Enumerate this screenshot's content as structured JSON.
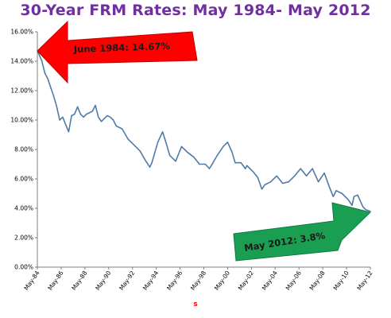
{
  "title": "30-Year FRM Rates: May 1984- May 2012",
  "colors": {
    "title": "#7030a0",
    "series": "#4f7ba7",
    "axis": "#7f7f7f",
    "arrow_down_red": "#ff0000",
    "arrow_up_green": "#1a9e52",
    "xlabel": "#ff0000"
  },
  "chart_data": {
    "type": "line",
    "title": "30-Year FRM Rates: May 1984- May 2012",
    "xlabel": "s",
    "ylabel": "",
    "ylim": [
      0,
      16
    ],
    "y_ticks": [
      "0.00%",
      "2.00%",
      "4.00%",
      "6.00%",
      "8.00%",
      "10.00%",
      "12.00%",
      "14.00%",
      "16.00%"
    ],
    "x_ticks": [
      "May-84",
      "May-86",
      "May-88",
      "May-90",
      "May-92",
      "May-94",
      "May-96",
      "May-98",
      "May-00",
      "May-02",
      "May-04",
      "May-06",
      "May-08",
      "May-10",
      "May-12"
    ],
    "grid": false,
    "series": [
      {
        "x": [
          1984.37,
          1984.5,
          1984.75,
          1985.0,
          1985.25,
          1985.5,
          1985.75,
          1986.0,
          1986.25,
          1986.5,
          1986.75,
          1987.0,
          1987.25,
          1987.5,
          1987.75,
          1988.0,
          1988.25,
          1988.5,
          1988.75,
          1989.0,
          1989.25,
          1989.5,
          1989.75,
          1990.0,
          1990.25,
          1990.5,
          1990.75,
          1991.0,
          1991.5,
          1992.0,
          1992.5,
          1993.0,
          1993.5,
          1993.83,
          1994.0,
          1994.5,
          1994.9,
          1995.25,
          1995.5,
          1996.0,
          1996.5,
          1997.0,
          1997.5,
          1998.0,
          1998.5,
          1998.83,
          1999.0,
          1999.5,
          2000.0,
          2000.37,
          2000.75,
          2001.0,
          2001.5,
          2001.85,
          2002.0,
          2002.5,
          2002.9,
          2003.25,
          2003.5,
          2004.0,
          2004.5,
          2005.0,
          2005.5,
          2006.0,
          2006.5,
          2007.0,
          2007.5,
          2008.0,
          2008.5,
          2008.9,
          2009.25,
          2009.5,
          2010.0,
          2010.5,
          2010.83,
          2011.0,
          2011.3,
          2011.75,
          2012.0,
          2012.37
        ],
        "values": [
          14.67,
          14.5,
          14.0,
          13.2,
          12.8,
          12.2,
          11.6,
          10.9,
          10.0,
          10.2,
          9.7,
          9.2,
          10.3,
          10.4,
          10.9,
          10.4,
          10.2,
          10.4,
          10.5,
          10.6,
          11.0,
          10.2,
          9.9,
          10.1,
          10.3,
          10.2,
          10.0,
          9.6,
          9.4,
          8.7,
          8.3,
          7.9,
          7.2,
          6.8,
          7.1,
          8.5,
          9.2,
          8.3,
          7.6,
          7.2,
          8.2,
          7.8,
          7.5,
          7.0,
          7.0,
          6.7,
          6.9,
          7.6,
          8.2,
          8.5,
          7.8,
          7.1,
          7.1,
          6.7,
          6.9,
          6.5,
          6.1,
          5.3,
          5.6,
          5.8,
          6.2,
          5.7,
          5.8,
          6.2,
          6.7,
          6.2,
          6.7,
          5.8,
          6.4,
          5.5,
          4.8,
          5.2,
          5.0,
          4.6,
          4.2,
          4.8,
          4.9,
          4.1,
          3.9,
          3.8
        ]
      }
    ],
    "annotations": [
      {
        "text": "June 1984: 14.67%"
      },
      {
        "text": "May 2012: 3.8%"
      }
    ]
  }
}
